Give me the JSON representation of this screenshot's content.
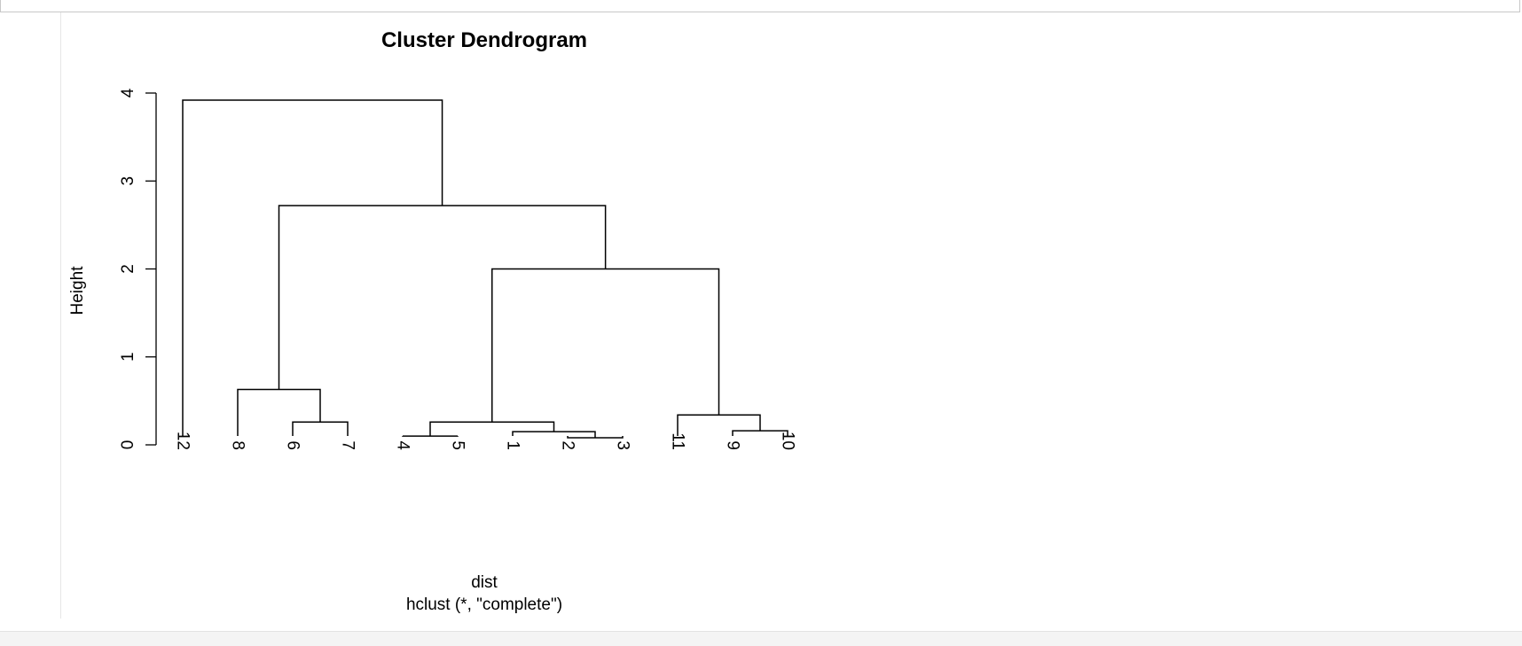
{
  "chart_data": {
    "type": "dendrogram",
    "title": "Cluster Dendrogram",
    "ylabel": "Height",
    "xlabel": "dist",
    "sub": "hclust (*, \"complete\")",
    "ylim": [
      0,
      4
    ],
    "yticks": [
      0,
      1,
      2,
      3,
      4
    ],
    "leaf_order": [
      "12",
      "8",
      "6",
      "7",
      "4",
      "5",
      "1",
      "2",
      "3",
      "11",
      "9",
      "10"
    ],
    "merges": [
      {
        "left": "2",
        "right": "3",
        "height": 0.08
      },
      {
        "left": "4",
        "right": "5",
        "height": 0.1
      },
      {
        "left": "1",
        "right": "2+3",
        "height": 0.15
      },
      {
        "left": "9",
        "right": "10",
        "height": 0.16
      },
      {
        "left": "6",
        "right": "7",
        "height": 0.26
      },
      {
        "left": "4+5",
        "right": "1+2+3",
        "height": 0.26
      },
      {
        "left": "11",
        "right": "9+10",
        "height": 0.34
      },
      {
        "left": "8",
        "right": "6+7",
        "height": 0.63
      },
      {
        "left": "4+5+1+2+3",
        "right": "11+9+10",
        "height": 2.0
      },
      {
        "left": "8+6+7",
        "right": "4+5+1+2+3+11+9+10",
        "height": 2.72
      },
      {
        "left": "12",
        "right": "8+6+7+4+5+1+2+3+11+9+10",
        "height": 3.92
      }
    ]
  }
}
